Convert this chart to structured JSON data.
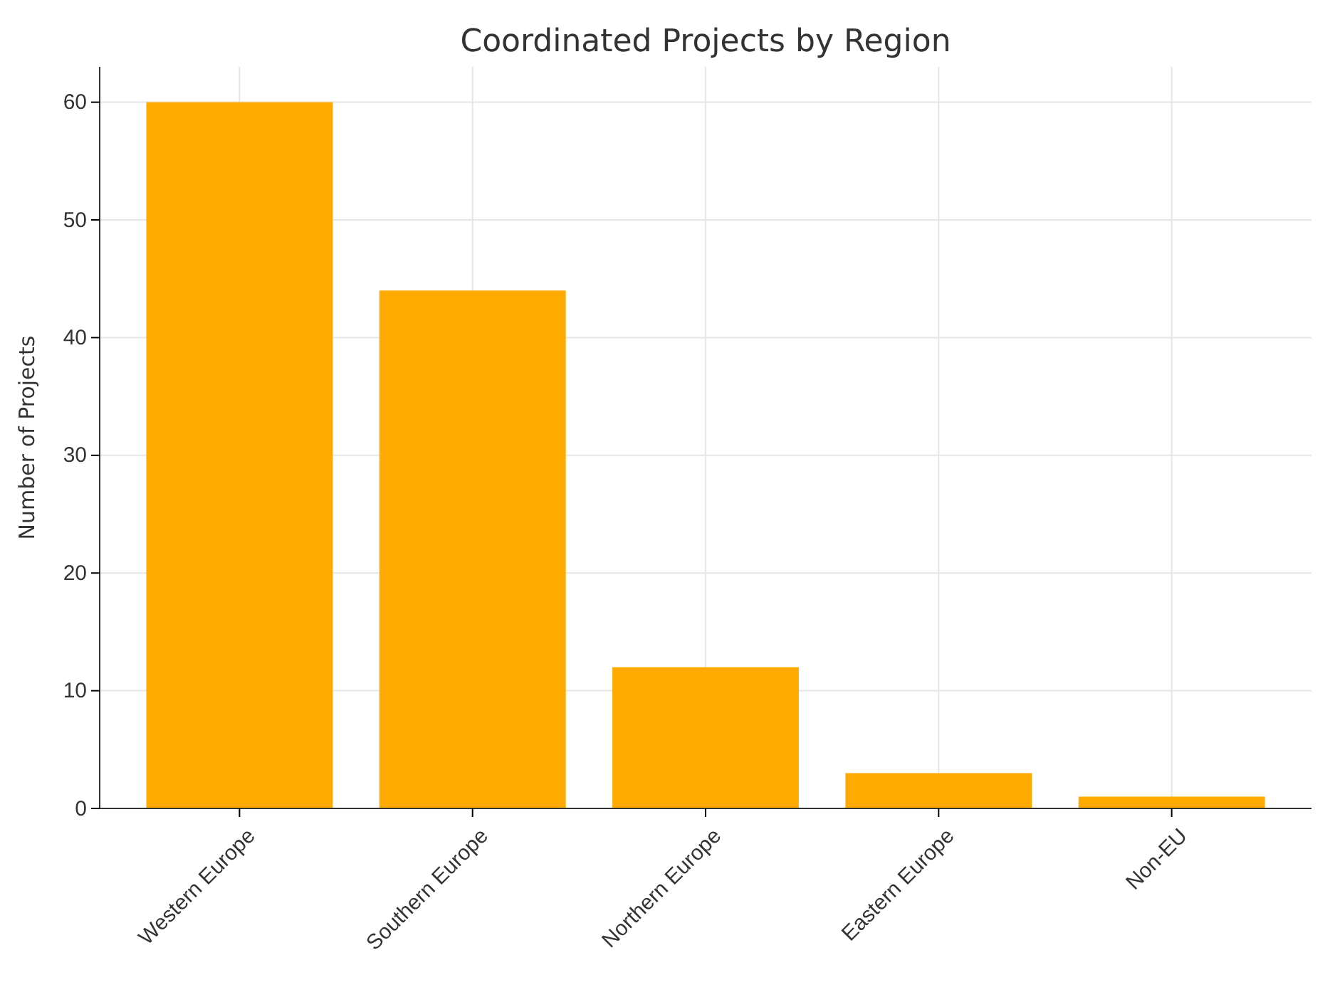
{
  "chart_data": {
    "type": "bar",
    "title": "Coordinated Projects by Region",
    "ylabel": "Number of Projects",
    "categories": [
      "Western Europe",
      "Southern Europe",
      "Northern Europe",
      "Eastern Europe",
      "Non-EU"
    ],
    "values": [
      60,
      44,
      12,
      3,
      1
    ],
    "color": "#ffaa00",
    "ylim": [
      0,
      63
    ],
    "yticks": [
      0,
      10,
      20,
      30,
      40,
      50,
      60
    ],
    "grid": true
  }
}
